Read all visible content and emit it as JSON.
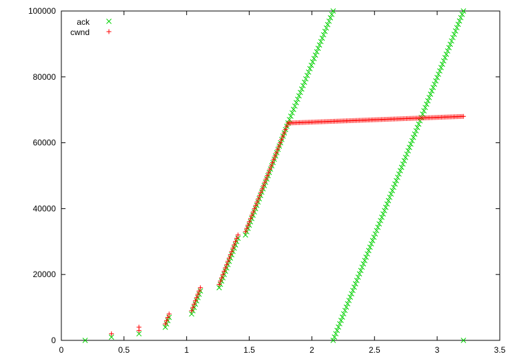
{
  "chart_data": {
    "type": "scatter",
    "title": "",
    "xlabel": "",
    "ylabel": "",
    "xlim": [
      0,
      3.5
    ],
    "ylim": [
      0,
      100000
    ],
    "grid": false,
    "legend_position": "top-left",
    "x_ticks": [
      "0",
      "0.5",
      "1",
      "1.5",
      "2",
      "2.5",
      "3",
      "3.5"
    ],
    "y_ticks": [
      "0",
      "20000",
      "40000",
      "60000",
      "80000",
      "100000"
    ],
    "series": [
      {
        "name": "ack",
        "marker": "x",
        "color": "#00d000",
        "segments": [
          {
            "points": [
              [
                0.19,
                0
              ],
              [
                0.4,
                1000
              ],
              [
                0.62,
                2000
              ],
              [
                0.83,
                4000
              ],
              [
                0.84,
                5000
              ],
              [
                0.85,
                6000
              ],
              [
                0.86,
                7000
              ]
            ]
          },
          {
            "start": [
              1.04,
              8000
            ],
            "end": [
              1.11,
              15000
            ],
            "count": 8
          },
          {
            "start": [
              1.26,
              16000
            ],
            "end": [
              1.41,
              31000
            ],
            "count": 16
          },
          {
            "start": [
              1.47,
              32000
            ],
            "end": [
              1.81,
              66000
            ],
            "count": 35
          },
          {
            "start": [
              1.81,
              66000
            ],
            "end": [
              2.17,
              100000
            ],
            "count": 34
          },
          {
            "start": [
              2.17,
              0
            ],
            "end": [
              3.21,
              100000
            ],
            "count": 100
          },
          {
            "points": [
              [
                3.21,
                0
              ]
            ]
          }
        ]
      },
      {
        "name": "cwnd",
        "marker": "+",
        "color": "#ff0000",
        "segments": [
          {
            "points": [
              [
                0.4,
                2000
              ],
              [
                0.62,
                3000
              ],
              [
                0.62,
                4000
              ],
              [
                0.83,
                5000
              ],
              [
                0.84,
                6000
              ],
              [
                0.85,
                7000
              ],
              [
                0.86,
                8000
              ]
            ]
          },
          {
            "start": [
              1.04,
              9000
            ],
            "end": [
              1.11,
              16000
            ],
            "count": 8
          },
          {
            "start": [
              1.26,
              17000
            ],
            "end": [
              1.41,
              32000
            ],
            "count": 16
          },
          {
            "start": [
              1.47,
              33000
            ],
            "end": [
              1.81,
              66000
            ],
            "count": 34
          },
          {
            "start": [
              1.82,
              66000
            ],
            "end": [
              3.21,
              68000
            ],
            "count": 120
          }
        ]
      }
    ]
  }
}
